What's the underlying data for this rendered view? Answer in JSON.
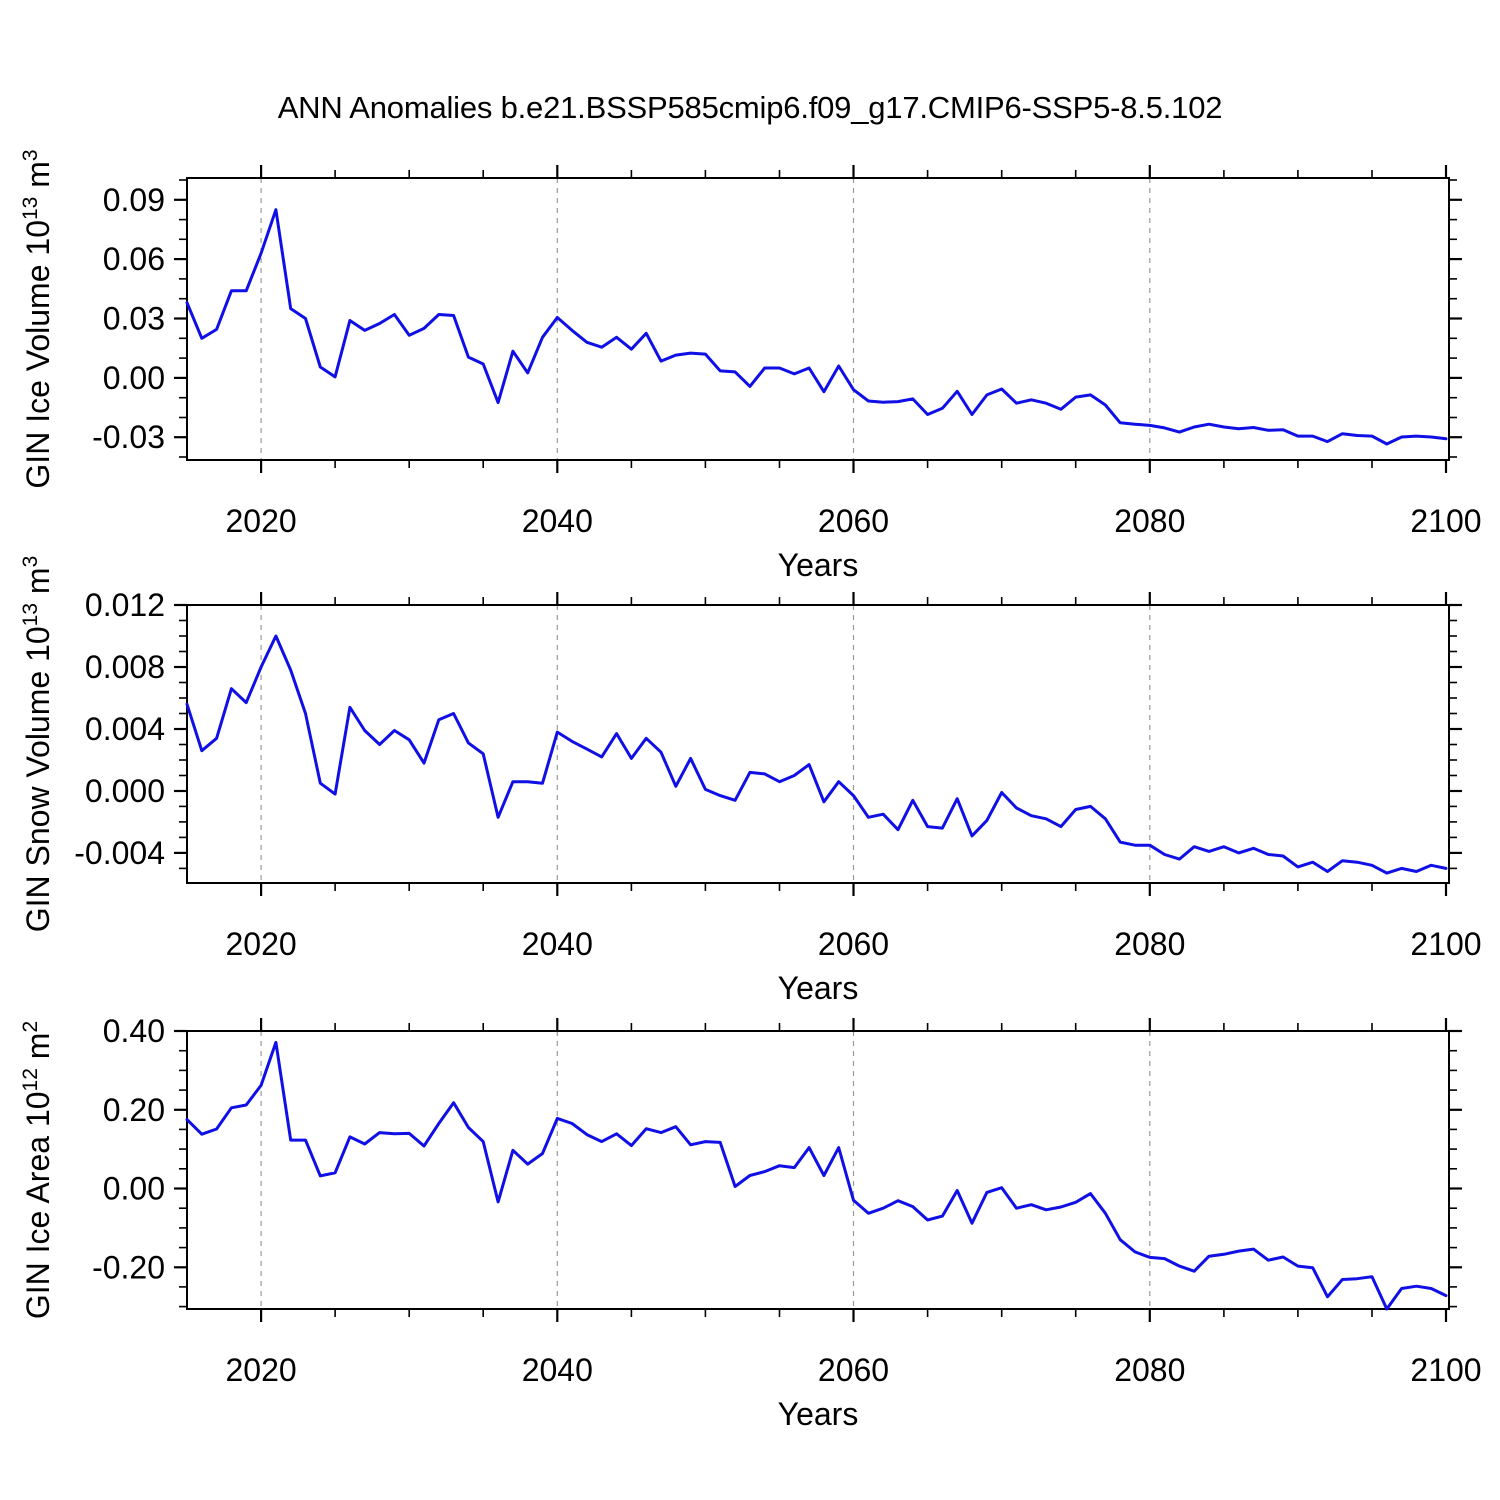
{
  "title": "ANN Anomalies b.e21.BSSP585cmip6.f09_g17.CMIP6-SSP5-8.5.102",
  "x_axis": {
    "label": "Years",
    "start_year": 2015,
    "end_year": 2100,
    "major_ticks": [
      "2020",
      "2040",
      "2060",
      "2080",
      "2100"
    ],
    "minor_tick_step_years": 5,
    "gridline_years": [
      2020,
      2040,
      2060,
      2080
    ]
  },
  "style": {
    "line_color": "#0f0fe6",
    "axis_color": "#000000",
    "gridline_color": "#999999",
    "text_color": "#000000",
    "background": "#ffffff"
  },
  "chart_data": [
    {
      "type": "line",
      "name": "gin-ice-volume",
      "ylabel": {
        "base": "GIN Ice Volume 10",
        "exponent": "13",
        "unit": " m",
        "unit_exponent": "3"
      },
      "x_start": 2015,
      "x_step": 1,
      "ylim": [
        -0.0415,
        0.101
      ],
      "ytick_values": [
        0.09,
        0.06,
        0.03,
        0.0,
        -0.03
      ],
      "ytick_labels": [
        "0.09",
        "0.06",
        "0.03",
        "0.00",
        "-0.03"
      ],
      "yminor_step": 0.01,
      "values": [
        0.038,
        0.02,
        0.0245,
        0.044,
        0.044,
        0.063,
        0.085,
        0.035,
        0.03,
        0.0055,
        0.0005,
        0.029,
        0.024,
        0.0275,
        0.032,
        0.0215,
        0.025,
        0.032,
        0.0315,
        0.0105,
        0.007,
        -0.0125,
        0.0135,
        0.0025,
        0.0205,
        0.0305,
        0.024,
        0.018,
        0.0155,
        0.0205,
        0.0145,
        0.0225,
        0.0085,
        0.0115,
        0.0125,
        0.012,
        0.0035,
        0.003,
        -0.0043,
        0.005,
        0.005,
        0.002,
        0.005,
        -0.007,
        0.006,
        -0.006,
        -0.0117,
        -0.0123,
        -0.012,
        -0.0106,
        -0.0185,
        -0.0154,
        -0.0068,
        -0.0185,
        -0.0086,
        -0.0056,
        -0.0128,
        -0.0111,
        -0.0128,
        -0.0159,
        -0.0097,
        -0.0086,
        -0.0137,
        -0.0227,
        -0.0234,
        -0.024,
        -0.0253,
        -0.0274,
        -0.0248,
        -0.0234,
        -0.0248,
        -0.0257,
        -0.0251,
        -0.0265,
        -0.0262,
        -0.0294,
        -0.0294,
        -0.0322,
        -0.0282,
        -0.0291,
        -0.0294,
        -0.0334,
        -0.0299,
        -0.0294,
        -0.0299,
        -0.0308
      ]
    },
    {
      "type": "line",
      "name": "gin-snow-volume",
      "ylabel": {
        "base": "GIN Snow Volume 10",
        "exponent": "13",
        "unit": " m",
        "unit_exponent": "3"
      },
      "x_start": 2015,
      "x_step": 1,
      "ylim": [
        -0.00594,
        0.012
      ],
      "ytick_values": [
        0.012,
        0.008,
        0.004,
        0.0,
        -0.004
      ],
      "ytick_labels": [
        "0.012",
        "0.008",
        "0.004",
        "0.000",
        "-0.004"
      ],
      "yminor_step": 0.001,
      "values": [
        0.0056,
        0.0026,
        0.0034,
        0.0066,
        0.0057,
        0.008,
        0.01,
        0.0078,
        0.005,
        0.0005,
        -0.0002,
        0.0054,
        0.0039,
        0.003,
        0.0039,
        0.0033,
        0.0018,
        0.0046,
        0.005,
        0.0031,
        0.0024,
        -0.0017,
        0.0006,
        0.0006,
        0.0005,
        0.0038,
        0.0032,
        0.0027,
        0.0022,
        0.0037,
        0.0021,
        0.0034,
        0.0025,
        0.0003,
        0.0021,
        0.0001,
        -0.0003,
        -0.0006,
        0.0012,
        0.0011,
        0.0006,
        0.001,
        0.0017,
        -0.0007,
        0.0006,
        -0.0003,
        -0.0017,
        -0.0015,
        -0.0025,
        -0.0006,
        -0.0023,
        -0.0024,
        -0.0005,
        -0.0029,
        -0.0019,
        -0.0001,
        -0.0011,
        -0.0016,
        -0.0018,
        -0.0023,
        -0.0012,
        -0.001,
        -0.0018,
        -0.0033,
        -0.0035,
        -0.0035,
        -0.0041,
        -0.0044,
        -0.0036,
        -0.0039,
        -0.0036,
        -0.004,
        -0.0037,
        -0.0041,
        -0.0042,
        -0.0049,
        -0.0046,
        -0.0052,
        -0.0045,
        -0.0046,
        -0.0048,
        -0.0053,
        -0.005,
        -0.0052,
        -0.0048,
        -0.005
      ]
    },
    {
      "type": "line",
      "name": "gin-ice-area",
      "ylabel": {
        "base": "GIN Ice Area 10",
        "exponent": "12",
        "unit": " m",
        "unit_exponent": "2"
      },
      "x_start": 2015,
      "x_step": 1,
      "ylim": [
        -0.306,
        0.4
      ],
      "ytick_values": [
        0.4,
        0.2,
        0.0,
        -0.2
      ],
      "ytick_labels": [
        "0.40",
        "0.20",
        "0.00",
        "-0.20"
      ],
      "yminor_step": 0.05,
      "values": [
        0.175,
        0.138,
        0.151,
        0.205,
        0.212,
        0.262,
        0.371,
        0.123,
        0.123,
        0.032,
        0.04,
        0.131,
        0.113,
        0.142,
        0.139,
        0.14,
        0.108,
        0.165,
        0.218,
        0.155,
        0.119,
        -0.034,
        0.097,
        0.062,
        0.089,
        0.178,
        0.165,
        0.137,
        0.119,
        0.139,
        0.109,
        0.152,
        0.142,
        0.157,
        0.111,
        0.119,
        0.117,
        0.005,
        0.033,
        0.043,
        0.058,
        0.053,
        0.104,
        0.033,
        0.104,
        -0.03,
        -0.063,
        -0.05,
        -0.031,
        -0.046,
        -0.08,
        -0.07,
        -0.005,
        -0.088,
        -0.01,
        0.002,
        -0.05,
        -0.041,
        -0.054,
        -0.047,
        -0.035,
        -0.013,
        -0.063,
        -0.13,
        -0.161,
        -0.175,
        -0.178,
        -0.197,
        -0.21,
        -0.172,
        -0.167,
        -0.159,
        -0.154,
        -0.182,
        -0.174,
        -0.197,
        -0.201,
        -0.275,
        -0.231,
        -0.229,
        -0.224,
        -0.306,
        -0.254,
        -0.248,
        -0.254,
        -0.272
      ]
    }
  ]
}
